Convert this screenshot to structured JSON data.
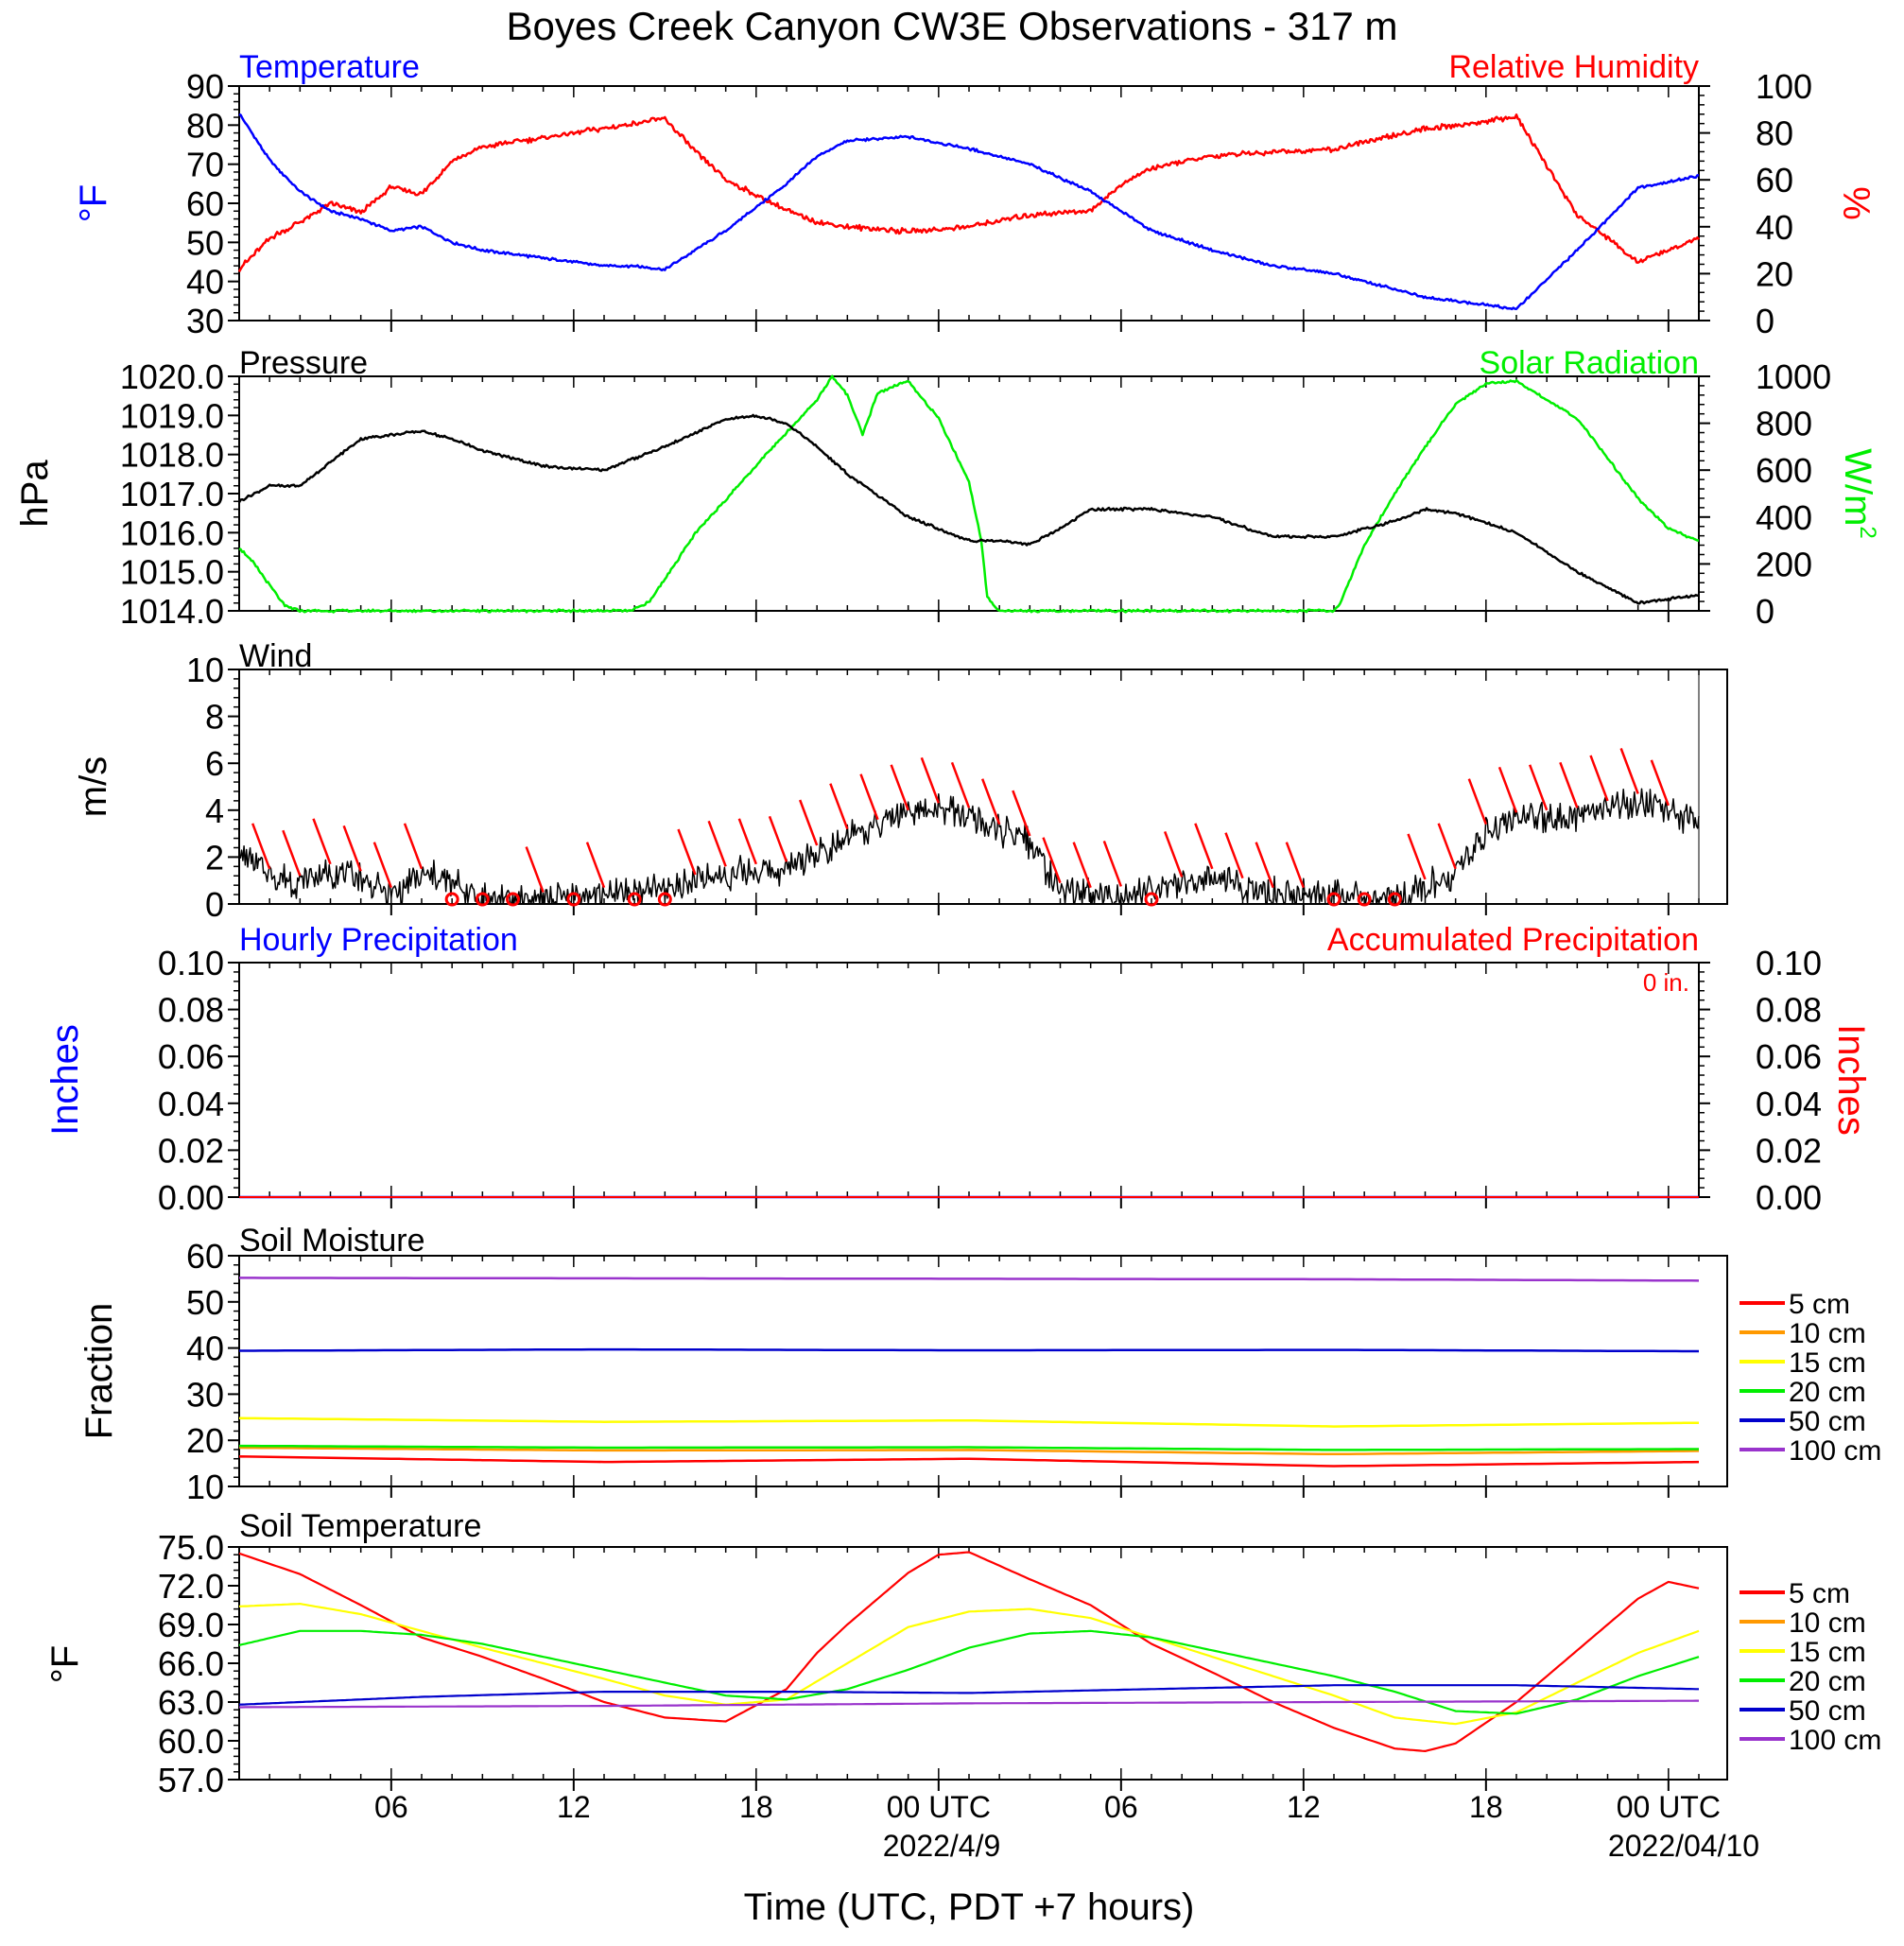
{
  "title": "Boyes Creek Canyon CW3E Observations - 317 m",
  "xlabel": "Time (UTC, PDT +7 hours)",
  "x_ticks": [
    "06",
    "12",
    "18",
    "00 UTC",
    "06",
    "12",
    "18",
    "00 UTC"
  ],
  "date_labels": [
    "2022/4/9",
    "2022/04/10"
  ],
  "colors": {
    "temperature": "#0000ff",
    "humidity": "#ff0000",
    "pressure": "#000000",
    "solar": "#00ee00",
    "wind": "#000000",
    "barbs": "#ff0000",
    "soil": [
      "#ff0000",
      "#ff9900",
      "#ffff00",
      "#00ee00",
      "#0000cc",
      "#9933cc"
    ]
  },
  "panels": {
    "temp_rh": {
      "left_title": "Temperature",
      "right_title": "Relative Humidity",
      "left_unit": "°F",
      "right_unit": "%"
    },
    "pressure": {
      "left_title": "Pressure",
      "right_title": "Solar Radiation",
      "left_unit": "hPa",
      "right_unit": "W/m",
      "right_unit_sup": "2"
    },
    "wind": {
      "left_title": "Wind",
      "left_unit": "m/s"
    },
    "precip": {
      "left_title": "Hourly Precipitation",
      "right_title": "Accumulated Precipitation",
      "left_unit": "Inches",
      "right_unit": "Inches",
      "total": "0 in."
    },
    "soil_moisture": {
      "left_title": "Soil Moisture",
      "left_unit": "Fraction"
    },
    "soil_temp": {
      "left_title": "Soil Temperature",
      "left_unit": "°F"
    }
  },
  "legend_depths": [
    "5 cm",
    "10 cm",
    "15 cm",
    "20 cm",
    "50 cm",
    "100 cm"
  ],
  "chart_data": [
    {
      "type": "line",
      "name": "temperature_rh",
      "x_unit": "hours since 2022-04-08 01 UTC",
      "x_range": [
        0,
        48
      ],
      "left_axis": {
        "range": [
          30,
          90
        ],
        "ticks": [
          "30",
          "40",
          "50",
          "60",
          "70",
          "80",
          "90"
        ]
      },
      "right_axis": {
        "range": [
          0,
          100
        ],
        "ticks": [
          "0",
          "20",
          "40",
          "60",
          "80",
          "100"
        ]
      },
      "series": [
        {
          "name": "Temperature",
          "axis": "left",
          "x": [
            0,
            1,
            2,
            3,
            4,
            5,
            6,
            7,
            8,
            10,
            12,
            13,
            14,
            16,
            18,
            19,
            20,
            22,
            24,
            26,
            28,
            30,
            32,
            34,
            36,
            38,
            39,
            40,
            42,
            44,
            46,
            48
          ],
          "y": [
            83,
            71,
            63,
            58,
            56,
            53,
            54,
            50,
            48,
            46,
            44,
            44,
            43,
            53,
            65,
            72,
            76,
            77,
            74,
            70,
            63,
            53,
            48,
            44,
            42,
            38,
            36,
            35,
            33,
            48,
            64,
            67
          ]
        },
        {
          "name": "Relative Humidity",
          "axis": "right",
          "x": [
            0,
            1,
            2,
            3,
            4,
            5,
            6,
            7,
            8,
            10,
            12,
            13,
            14,
            15,
            16,
            18,
            19,
            20,
            22,
            24,
            26,
            28,
            29,
            30,
            32,
            34,
            36,
            38,
            39,
            40,
            42,
            44,
            46,
            48
          ],
          "y": [
            22,
            35,
            42,
            50,
            46,
            57,
            54,
            68,
            74,
            78,
            82,
            84,
            86,
            72,
            60,
            47,
            42,
            40,
            38,
            40,
            45,
            47,
            58,
            65,
            70,
            72,
            73,
            79,
            82,
            83,
            87,
            45,
            25,
            35
          ]
        }
      ]
    },
    {
      "type": "line",
      "name": "pressure_solar",
      "x_range": [
        0,
        48
      ],
      "left_axis": {
        "range": [
          1014,
          1020
        ],
        "ticks": [
          "1014.0",
          "1015.0",
          "1016.0",
          "1017.0",
          "1018.0",
          "1019.0",
          "1020.0"
        ]
      },
      "right_axis": {
        "range": [
          0,
          1000
        ],
        "ticks": [
          "0",
          "200",
          "400",
          "600",
          "800",
          "1000"
        ]
      },
      "series": [
        {
          "name": "Pressure",
          "axis": "left",
          "x": [
            0,
            1,
            2,
            3,
            4,
            5,
            6,
            7,
            8,
            10,
            12,
            13,
            14,
            16,
            17,
            18,
            19,
            20,
            22,
            24,
            25,
            26,
            27,
            28,
            30,
            32,
            34,
            36,
            37,
            38,
            39,
            40,
            42,
            44,
            46,
            48
          ],
          "y": [
            1016.8,
            1017.2,
            1017.2,
            1017.8,
            1018.4,
            1018.5,
            1018.6,
            1018.4,
            1018.1,
            1017.7,
            1017.6,
            1017.9,
            1018.2,
            1018.9,
            1019.0,
            1018.8,
            1018.2,
            1017.5,
            1016.4,
            1015.8,
            1015.8,
            1015.7,
            1016.1,
            1016.6,
            1016.6,
            1016.4,
            1015.9,
            1015.9,
            1016.1,
            1016.3,
            1016.6,
            1016.5,
            1016.0,
            1015.0,
            1014.2,
            1014.4
          ]
        },
        {
          "name": "Solar Radiation",
          "axis": "right",
          "x": [
            0,
            0.5,
            1.5,
            2,
            12.9,
            13.5,
            15,
            17,
            18,
            19,
            19.5,
            20,
            20.5,
            21,
            22,
            23,
            24,
            24.4,
            24.6,
            25,
            36,
            36.2,
            37,
            38,
            39,
            40,
            41,
            42,
            43,
            44,
            45,
            46,
            47,
            48
          ],
          "y": [
            270,
            200,
            20,
            0,
            0,
            40,
            330,
            620,
            760,
            900,
            1000,
            920,
            750,
            930,
            980,
            820,
            550,
            300,
            60,
            0,
            0,
            30,
            280,
            500,
            700,
            880,
            970,
            980,
            900,
            820,
            650,
            480,
            350,
            300
          ]
        }
      ]
    },
    {
      "type": "line",
      "name": "wind",
      "x_range": [
        0,
        48
      ],
      "y_range": [
        0,
        10
      ],
      "y_ticks": [
        "0",
        "2",
        "4",
        "6",
        "8",
        "10"
      ],
      "series": [
        {
          "name": "Wind speed",
          "x": [
            0,
            1,
            2,
            3,
            4,
            5,
            6,
            7,
            8,
            10,
            12,
            14,
            16,
            18,
            20,
            21,
            22,
            23,
            24,
            25,
            26,
            27,
            28,
            30,
            32,
            34,
            36,
            38,
            40,
            41,
            42,
            44,
            46,
            48
          ],
          "y": [
            2.2,
            1.2,
            0.9,
            1.4,
            1.1,
            0.4,
            1.2,
            0.9,
            0.3,
            0.2,
            0.4,
            0.6,
            1.3,
            1.5,
            2.9,
            3.3,
            3.7,
            4.0,
            3.8,
            3.1,
            2.6,
            0.6,
            0.4,
            0.5,
            1.2,
            0.4,
            0.4,
            0.3,
            1.2,
            3.1,
            3.6,
            3.8,
            4.4,
            3.4
          ]
        }
      ],
      "calm_marks_hours": [
        7,
        8,
        9,
        11,
        13,
        14,
        30,
        36,
        37,
        38
      ]
    },
    {
      "type": "line",
      "name": "precipitation",
      "x_range": [
        0,
        48
      ],
      "left_axis": {
        "range": [
          0,
          0.1
        ],
        "ticks": [
          "0.00",
          "0.02",
          "0.04",
          "0.06",
          "0.08",
          "0.10"
        ]
      },
      "right_axis": {
        "range": [
          0,
          0.1
        ],
        "ticks": [
          "0.00",
          "0.02",
          "0.04",
          "0.06",
          "0.08",
          "0.10"
        ]
      },
      "series": [
        {
          "name": "Hourly Precipitation",
          "x": [
            0,
            48
          ],
          "y": [
            0,
            0
          ]
        },
        {
          "name": "Accumulated Precipitation",
          "x": [
            0,
            48
          ],
          "y": [
            0,
            0
          ]
        }
      ]
    },
    {
      "type": "line",
      "name": "soil_moisture",
      "x_range": [
        0,
        48
      ],
      "y_range": [
        10,
        60
      ],
      "y_ticks": [
        "10",
        "20",
        "30",
        "40",
        "50",
        "60"
      ],
      "series": [
        {
          "name": "5 cm",
          "x": [
            0,
            12,
            24,
            36,
            48
          ],
          "y": [
            16.5,
            15.3,
            16.0,
            14.4,
            15.3
          ]
        },
        {
          "name": "10 cm",
          "x": [
            0,
            12,
            24,
            36,
            48
          ],
          "y": [
            18.4,
            17.8,
            17.9,
            17.0,
            17.7
          ]
        },
        {
          "name": "15 cm",
          "x": [
            0,
            12,
            24,
            36,
            48
          ],
          "y": [
            24.8,
            24.0,
            24.3,
            23.0,
            23.8
          ]
        },
        {
          "name": "20 cm",
          "x": [
            0,
            12,
            24,
            36,
            48
          ],
          "y": [
            18.8,
            18.4,
            18.5,
            17.9,
            18.1
          ]
        },
        {
          "name": "50 cm",
          "x": [
            0,
            12,
            24,
            36,
            48
          ],
          "y": [
            39.4,
            39.7,
            39.5,
            39.6,
            39.3
          ]
        },
        {
          "name": "100 cm",
          "x": [
            0,
            12,
            24,
            36,
            48
          ],
          "y": [
            55.2,
            55.1,
            55.0,
            54.9,
            54.6
          ]
        }
      ]
    },
    {
      "type": "line",
      "name": "soil_temperature",
      "x_range": [
        0,
        48
      ],
      "y_range": [
        57,
        75
      ],
      "y_ticks": [
        "57.0",
        "60.0",
        "63.0",
        "66.0",
        "69.0",
        "72.0",
        "75.0"
      ],
      "series": [
        {
          "name": "5 cm",
          "x": [
            0,
            2,
            4,
            6,
            8,
            10,
            12,
            14,
            16,
            18,
            19,
            20,
            22,
            23,
            24,
            26,
            28,
            30,
            32,
            34,
            36,
            38,
            39,
            40,
            42,
            44,
            46,
            47,
            48
          ],
          "y": [
            74.5,
            72.9,
            70.5,
            68.0,
            66.5,
            64.8,
            63.0,
            61.8,
            61.5,
            64.0,
            66.8,
            69.0,
            73.0,
            74.4,
            74.6,
            72.5,
            70.5,
            67.5,
            65.3,
            63.0,
            61.0,
            59.4,
            59.2,
            59.8,
            63.0,
            67.0,
            71.0,
            72.3,
            71.8
          ]
        },
        {
          "name": "15 cm",
          "x": [
            0,
            2,
            4,
            6,
            8,
            10,
            12,
            14,
            16,
            18,
            20,
            22,
            24,
            26,
            28,
            30,
            32,
            34,
            36,
            38,
            40,
            42,
            44,
            46,
            48
          ],
          "y": [
            70.4,
            70.6,
            69.8,
            68.5,
            67.2,
            66.0,
            64.8,
            63.5,
            62.8,
            63.2,
            66.0,
            68.8,
            70.0,
            70.2,
            69.5,
            68.0,
            66.5,
            65.0,
            63.5,
            61.8,
            61.3,
            62.2,
            64.5,
            66.8,
            68.5
          ]
        },
        {
          "name": "20 cm",
          "x": [
            0,
            2,
            4,
            6,
            8,
            10,
            12,
            14,
            16,
            18,
            20,
            22,
            24,
            26,
            28,
            30,
            32,
            34,
            36,
            38,
            40,
            42,
            44,
            46,
            48
          ],
          "y": [
            67.4,
            68.5,
            68.5,
            68.2,
            67.5,
            66.5,
            65.5,
            64.5,
            63.5,
            63.2,
            64.0,
            65.5,
            67.2,
            68.3,
            68.5,
            68.0,
            67.0,
            66.0,
            65.0,
            63.8,
            62.3,
            62.1,
            63.2,
            65.0,
            66.5
          ]
        },
        {
          "name": "50 cm",
          "x": [
            0,
            6,
            12,
            18,
            24,
            30,
            36,
            42,
            48
          ],
          "y": [
            62.8,
            63.4,
            63.8,
            63.8,
            63.7,
            64.0,
            64.3,
            64.3,
            64.0
          ]
        },
        {
          "name": "100 cm",
          "x": [
            0,
            12,
            24,
            36,
            48
          ],
          "y": [
            62.6,
            62.7,
            62.9,
            63.0,
            63.1
          ]
        }
      ]
    }
  ]
}
